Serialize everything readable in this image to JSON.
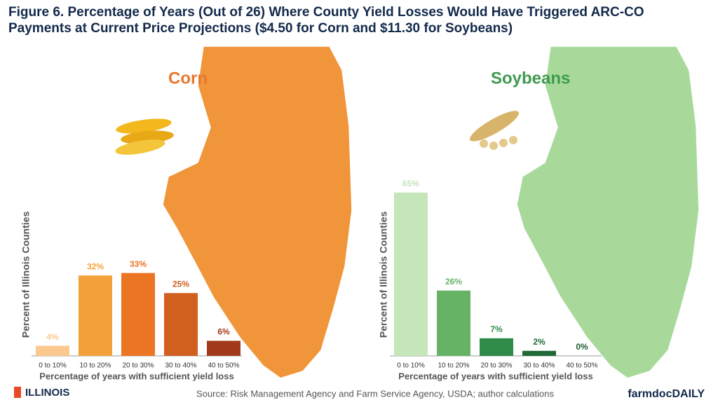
{
  "title": "Figure 6. Percentage of Years (Out of 26) Where County Yield Losses Would Have Triggered ARC-CO Payments at Current Price Projections ($4.50 for Corn and $11.30 for Soybeans)",
  "source": "Source: Risk Management Agency and Farm Service Agency, USDA; author calculations",
  "logo": "ILLINOIS",
  "brand": "farmdocDAILY",
  "chart_data": [
    {
      "type": "bar",
      "title": "Corn",
      "categories": [
        "0 to 10%",
        "10 to 20%",
        "20 to 30%",
        "30 to 40%",
        "40 to 50%"
      ],
      "values": [
        4,
        32,
        33,
        25,
        6
      ],
      "value_labels": [
        "4%",
        "32%",
        "33%",
        "25%",
        "6%"
      ],
      "colors": [
        "#fbc98d",
        "#f5a13b",
        "#ec7524",
        "#d15f1e",
        "#a33a1b"
      ],
      "x_label": "Percentage of years with sufficient yield loss",
      "y_label": "Percent of Illinois Counties",
      "ylim": [
        0,
        70
      ]
    },
    {
      "type": "bar",
      "title": "Soybeans",
      "categories": [
        "0 to 10%",
        "10 to 20%",
        "20 to 30%",
        "30 to 40%",
        "40 to 50%"
      ],
      "values": [
        65,
        26,
        7,
        2,
        0
      ],
      "value_labels": [
        "65%",
        "26%",
        "7%",
        "2%",
        "0%"
      ],
      "colors": [
        "#c4e6b9",
        "#67b365",
        "#2f8b48",
        "#1f6a37",
        "#1a5a2f"
      ],
      "x_label": "Percentage of years with sufficient yield loss",
      "y_label": "Percent of Illinois Counties",
      "ylim": [
        0,
        70
      ]
    }
  ]
}
